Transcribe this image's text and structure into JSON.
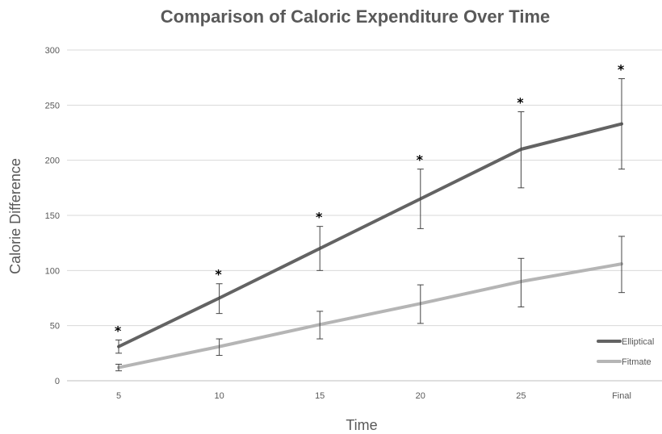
{
  "chart_data": {
    "type": "line",
    "title": "Comparison of Caloric Expenditure Over Time",
    "xlabel": "Time",
    "ylabel": "Calorie Difference",
    "categories": [
      "5",
      "10",
      "15",
      "20",
      "25",
      "Final"
    ],
    "ylim": [
      0,
      300
    ],
    "yticks": [
      0,
      50,
      100,
      150,
      200,
      250,
      300
    ],
    "grid": true,
    "legend_position": "bottom-right",
    "series": [
      {
        "name": "Elliptical",
        "color": "#636363",
        "values": [
          31,
          75,
          120,
          165,
          210,
          233
        ],
        "error_low": [
          25,
          61,
          100,
          138,
          175,
          192
        ],
        "error_high": [
          37,
          88,
          140,
          192,
          244,
          274
        ]
      },
      {
        "name": "Fitmate",
        "color": "#b5b5b5",
        "values": [
          12,
          31,
          51,
          70,
          90,
          106
        ],
        "error_low": [
          9,
          23,
          38,
          52,
          67,
          80
        ],
        "error_high": [
          15,
          38,
          63,
          87,
          111,
          131
        ]
      }
    ],
    "significance_markers": [
      "*",
      "*",
      "*",
      "*",
      "*",
      "*"
    ]
  }
}
